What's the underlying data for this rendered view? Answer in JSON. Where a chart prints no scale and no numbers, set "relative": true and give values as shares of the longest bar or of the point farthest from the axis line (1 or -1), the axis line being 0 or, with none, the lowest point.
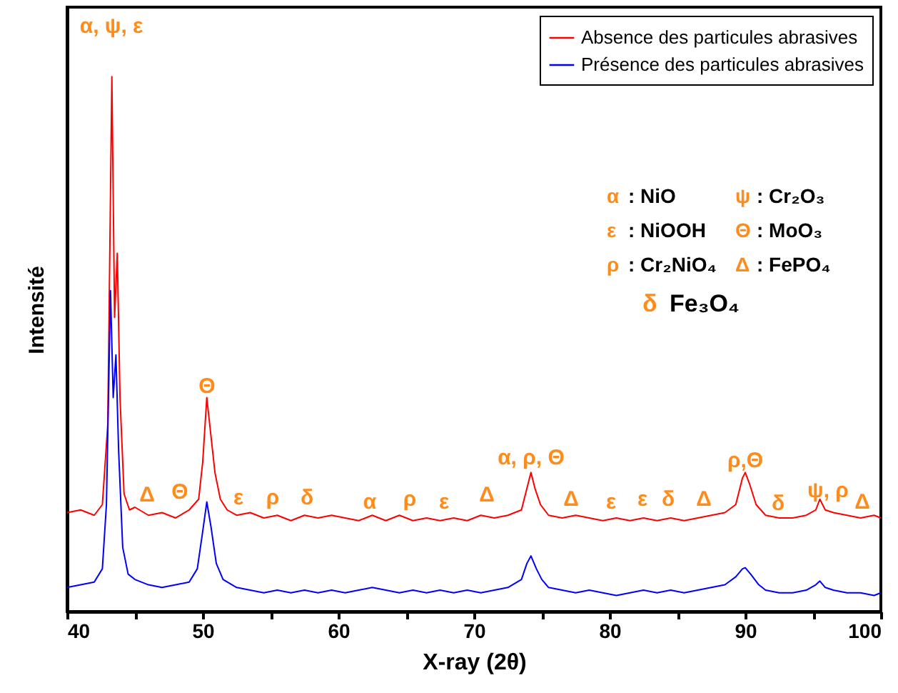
{
  "chart_data": {
    "type": "line",
    "relative": true,
    "xlabel": "X-ray (2θ)",
    "ylabel": "Intensité",
    "xlim": [
      40,
      100
    ],
    "xticks": [
      40,
      {
        "value": 45,
        "label": null
      },
      50,
      {
        "value": 55,
        "label": null
      },
      60,
      {
        "value": 65,
        "label": null
      },
      70,
      {
        "value": 75,
        "label": null
      },
      80,
      {
        "value": 85,
        "label": null
      },
      90,
      {
        "value": 95,
        "label": null
      },
      100
    ],
    "legend": "top right",
    "grid": false,
    "series": [
      {
        "name": "Absence des particules abrasives",
        "color": "#ff0000",
        "x": [
          40,
          41,
          42,
          42.6,
          43.0,
          43.3,
          43.5,
          43.7,
          43.9,
          44.2,
          44.6,
          45,
          46,
          47,
          48,
          49,
          49.7,
          50.0,
          50.3,
          50.6,
          50.9,
          51.3,
          51.8,
          52.5,
          53.5,
          54.5,
          55.5,
          56.5,
          57.5,
          58.5,
          59.5,
          60.5,
          61.5,
          62.5,
          63.5,
          64.5,
          65.5,
          66.5,
          67.5,
          68.5,
          69.5,
          70.5,
          71.5,
          72.5,
          73.5,
          73.9,
          74.2,
          74.5,
          74.9,
          75.5,
          76.5,
          77.5,
          78.5,
          79.5,
          80.5,
          81.5,
          82.5,
          83.5,
          84.5,
          85.5,
          86.5,
          87.5,
          88.5,
          89.3,
          89.8,
          90.0,
          90.3,
          90.8,
          91.5,
          92.5,
          93.5,
          94.5,
          95.2,
          95.5,
          95.9,
          96.5,
          97.5,
          98.5,
          99.5,
          100
        ],
        "values": [
          0.185,
          0.19,
          0.18,
          0.2,
          0.35,
          1.0,
          0.55,
          0.67,
          0.4,
          0.22,
          0.19,
          0.195,
          0.18,
          0.185,
          0.175,
          0.19,
          0.21,
          0.28,
          0.4,
          0.33,
          0.26,
          0.21,
          0.19,
          0.18,
          0.185,
          0.175,
          0.18,
          0.17,
          0.18,
          0.175,
          0.18,
          0.175,
          0.17,
          0.18,
          0.17,
          0.18,
          0.17,
          0.175,
          0.17,
          0.175,
          0.17,
          0.18,
          0.175,
          0.18,
          0.19,
          0.23,
          0.26,
          0.23,
          0.2,
          0.18,
          0.175,
          0.18,
          0.175,
          0.17,
          0.175,
          0.17,
          0.175,
          0.17,
          0.175,
          0.17,
          0.175,
          0.18,
          0.185,
          0.2,
          0.25,
          0.26,
          0.24,
          0.2,
          0.18,
          0.175,
          0.175,
          0.18,
          0.19,
          0.21,
          0.19,
          0.185,
          0.18,
          0.175,
          0.18,
          0.175
        ]
      },
      {
        "name": "Présence des particules abrasives",
        "color": "#0000ff",
        "x": [
          40,
          41,
          42,
          42.6,
          42.9,
          43.2,
          43.4,
          43.6,
          43.8,
          44.1,
          44.5,
          45,
          46,
          47,
          48,
          49,
          49.6,
          50.0,
          50.3,
          50.6,
          51,
          51.5,
          52.5,
          53.5,
          54.5,
          55.5,
          56.5,
          57.5,
          58.5,
          59.5,
          60.5,
          61.5,
          62.5,
          63.5,
          64.5,
          65.5,
          66.5,
          67.5,
          68.5,
          69.5,
          70.5,
          71.5,
          72.5,
          73.5,
          73.9,
          74.2,
          74.6,
          75,
          75.5,
          76.5,
          77.5,
          78.5,
          79.5,
          80.5,
          81.5,
          82.5,
          83.5,
          84.5,
          85.5,
          86.5,
          87.5,
          88.5,
          89.3,
          89.8,
          90.0,
          90.4,
          91,
          91.5,
          92.5,
          93.5,
          94.5,
          95.2,
          95.5,
          95.9,
          96.5,
          97.5,
          98.5,
          99.5,
          100
        ],
        "values": [
          0.045,
          0.05,
          0.055,
          0.08,
          0.2,
          0.6,
          0.4,
          0.48,
          0.3,
          0.12,
          0.07,
          0.06,
          0.05,
          0.045,
          0.05,
          0.055,
          0.08,
          0.15,
          0.205,
          0.16,
          0.09,
          0.06,
          0.045,
          0.04,
          0.035,
          0.04,
          0.035,
          0.04,
          0.035,
          0.04,
          0.035,
          0.04,
          0.045,
          0.04,
          0.035,
          0.04,
          0.035,
          0.04,
          0.035,
          0.04,
          0.035,
          0.04,
          0.045,
          0.06,
          0.09,
          0.104,
          0.08,
          0.06,
          0.045,
          0.04,
          0.035,
          0.04,
          0.035,
          0.03,
          0.035,
          0.04,
          0.035,
          0.04,
          0.035,
          0.04,
          0.045,
          0.05,
          0.065,
          0.08,
          0.082,
          0.07,
          0.05,
          0.04,
          0.035,
          0.035,
          0.04,
          0.05,
          0.057,
          0.045,
          0.04,
          0.035,
          0.035,
          0.03,
          0.035
        ]
      }
    ],
    "annotations": [
      "α, ψ, ε",
      "Θ",
      "Δ",
      "Θ",
      "ε",
      "ρ",
      "δ",
      "α",
      "ρ",
      "ε",
      "Δ",
      "α, ρ, Θ",
      "Δ",
      "ε",
      "ε",
      "δ",
      "Δ",
      "ρ,Θ",
      "δ",
      "ψ, ρ",
      "Δ",
      "α : NiO",
      "ψ : Cr₂O₃",
      "ε : NiOOH",
      "Θ : MoO₃",
      "ρ : Cr₂NiO₄",
      "Δ : FePO₄",
      "δ Fe₃O₄"
    ]
  }
}
